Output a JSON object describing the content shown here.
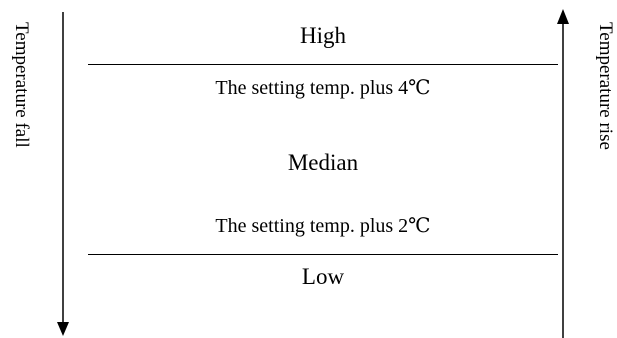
{
  "zones": {
    "high": "High",
    "median": "Median",
    "low": "Low"
  },
  "thresholds": {
    "upper": "The setting temp. plus 4℃",
    "lower": "The setting temp. plus 2℃"
  },
  "axes": {
    "left": "Temperature fall",
    "right": "Temperature rise"
  }
}
